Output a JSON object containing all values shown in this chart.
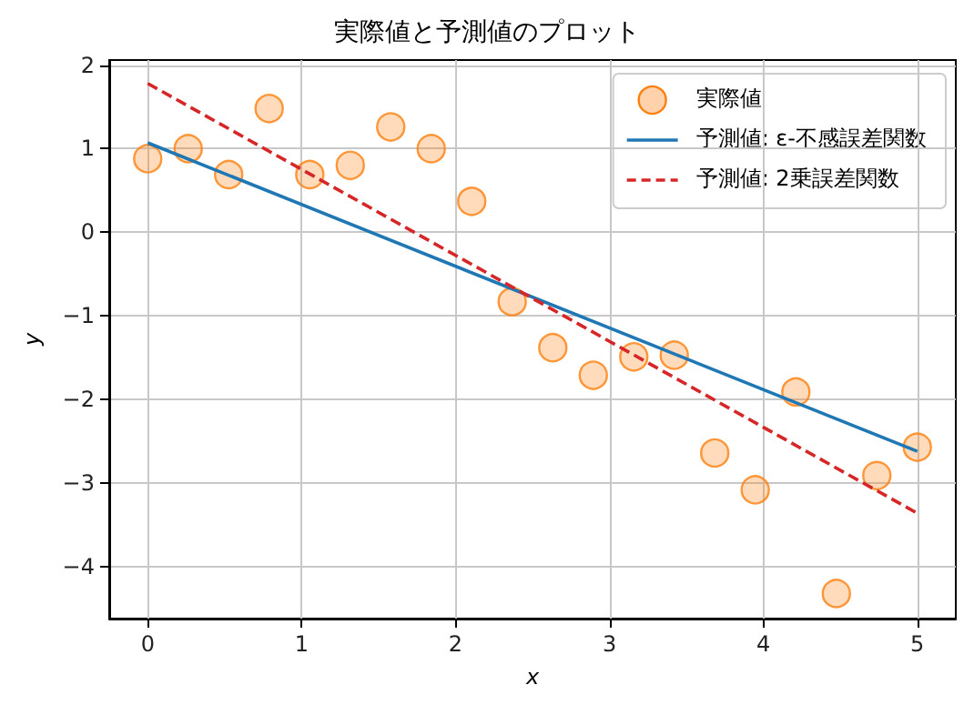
{
  "chart_data": {
    "type": "scatter",
    "title": "実際値と予測値のプロット",
    "xlabel": "x",
    "ylabel": "y",
    "xlim": [
      -0.25,
      5.25
    ],
    "xticks": [
      0,
      1,
      2,
      3,
      4,
      5
    ],
    "ylim": [
      -4.62,
      2.06
    ],
    "yticks": [
      -4,
      -3,
      -2,
      -1,
      0,
      1,
      2
    ],
    "grid": true,
    "legend": "top right",
    "series": [
      {
        "name": "実際値",
        "type": "scatter",
        "marker": "circle",
        "color": "#ff7f0e",
        "x": [
          0,
          0.263,
          0.526,
          0.789,
          1.053,
          1.316,
          1.579,
          1.842,
          2.105,
          2.368,
          2.632,
          2.895,
          3.158,
          3.421,
          3.684,
          3.947,
          4.211,
          4.474,
          4.737,
          5
        ],
        "values": [
          0.88,
          1.0,
          0.69,
          1.48,
          0.69,
          0.8,
          1.26,
          1.0,
          0.37,
          -0.83,
          -1.38,
          -1.71,
          -1.49,
          -1.47,
          -2.64,
          -3.08,
          -1.91,
          -4.32,
          -2.91,
          -2.57
        ]
      },
      {
        "name": "予測値: ε-不感誤差関数",
        "type": "line",
        "line_style": "solid",
        "color": "#1f77b4",
        "x": [
          0,
          5
        ],
        "values": [
          1.07,
          -2.62
        ]
      },
      {
        "name": "予測値: 2乗誤差関数",
        "type": "line",
        "line_style": "dashed",
        "color": "#d62728",
        "x": [
          0,
          5
        ],
        "values": [
          1.78,
          -3.36
        ]
      }
    ]
  }
}
